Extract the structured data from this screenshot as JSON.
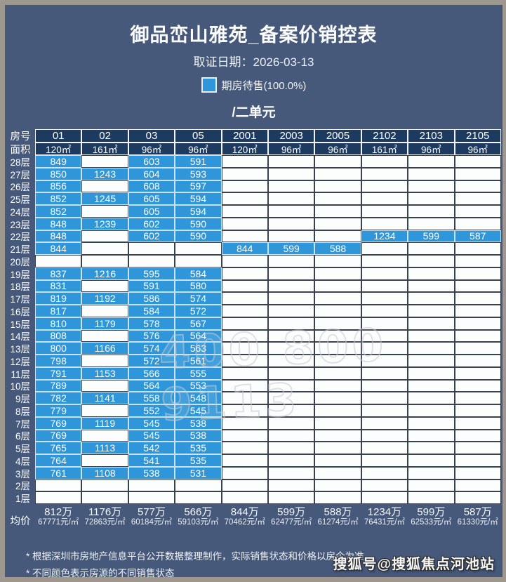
{
  "header": {
    "title": "御品峦山雅苑_备案价销控表",
    "date_line": "取证日期：2026-03-13"
  },
  "legend": {
    "label": "期房待售(100.0%)",
    "color": "#2e96d9"
  },
  "unit_title": "/二单元",
  "table": {
    "corner_labels": [
      "房号",
      "面积"
    ],
    "columns": [
      "01",
      "02",
      "03",
      "05",
      "2001",
      "2003",
      "2005",
      "2102",
      "2103",
      "2105"
    ],
    "areas": [
      "120㎡",
      "161㎡",
      "96㎡",
      "96㎡",
      "120㎡",
      "96㎡",
      "96㎡",
      "161㎡",
      "96㎡",
      "96㎡"
    ],
    "floors": [
      {
        "label": "28层",
        "cells": [
          849,
          null,
          603,
          591,
          null,
          null,
          null,
          null,
          null,
          null
        ]
      },
      {
        "label": "27层",
        "cells": [
          850,
          1243,
          604,
          593,
          null,
          null,
          null,
          null,
          null,
          null
        ]
      },
      {
        "label": "26层",
        "cells": [
          856,
          null,
          608,
          597,
          null,
          null,
          null,
          null,
          null,
          null
        ]
      },
      {
        "label": "25层",
        "cells": [
          852,
          1245,
          605,
          594,
          null,
          null,
          null,
          null,
          null,
          null
        ]
      },
      {
        "label": "24层",
        "cells": [
          852,
          null,
          605,
          594,
          null,
          null,
          null,
          null,
          null,
          null
        ]
      },
      {
        "label": "23层",
        "cells": [
          848,
          1239,
          602,
          590,
          null,
          null,
          null,
          null,
          null,
          null
        ]
      },
      {
        "label": "22层",
        "cells": [
          848,
          null,
          602,
          590,
          null,
          null,
          null,
          1234,
          599,
          587
        ]
      },
      {
        "label": "21层",
        "cells": [
          844,
          null,
          null,
          null,
          844,
          599,
          588,
          null,
          null,
          null
        ]
      },
      {
        "label": "20层",
        "cells": [
          null,
          null,
          null,
          null,
          null,
          null,
          null,
          null,
          null,
          null
        ]
      },
      {
        "label": "19层",
        "cells": [
          837,
          1216,
          595,
          584,
          null,
          null,
          null,
          null,
          null,
          null
        ]
      },
      {
        "label": "18层",
        "cells": [
          831,
          null,
          591,
          580,
          null,
          null,
          null,
          null,
          null,
          null
        ]
      },
      {
        "label": "17层",
        "cells": [
          819,
          1192,
          586,
          574,
          null,
          null,
          null,
          null,
          null,
          null
        ]
      },
      {
        "label": "16层",
        "cells": [
          817,
          null,
          584,
          572,
          null,
          null,
          null,
          null,
          null,
          null
        ]
      },
      {
        "label": "15层",
        "cells": [
          810,
          1179,
          578,
          567,
          null,
          null,
          null,
          null,
          null,
          null
        ]
      },
      {
        "label": "14层",
        "cells": [
          808,
          null,
          576,
          564,
          null,
          null,
          null,
          null,
          null,
          null
        ]
      },
      {
        "label": "13层",
        "cells": [
          800,
          1166,
          574,
          563,
          null,
          null,
          null,
          null,
          null,
          null
        ]
      },
      {
        "label": "12层",
        "cells": [
          798,
          null,
          572,
          561,
          null,
          null,
          null,
          null,
          null,
          null
        ]
      },
      {
        "label": "11层",
        "cells": [
          791,
          1153,
          566,
          555,
          null,
          null,
          null,
          null,
          null,
          null
        ]
      },
      {
        "label": "10层",
        "cells": [
          789,
          null,
          564,
          553,
          null,
          null,
          null,
          null,
          null,
          null
        ]
      },
      {
        "label": "9层",
        "cells": [
          782,
          1141,
          558,
          548,
          null,
          null,
          null,
          null,
          null,
          null
        ]
      },
      {
        "label": "8层",
        "cells": [
          779,
          null,
          552,
          545,
          null,
          null,
          null,
          null,
          null,
          null
        ]
      },
      {
        "label": "7层",
        "cells": [
          769,
          1119,
          545,
          538,
          null,
          null,
          null,
          null,
          null,
          null
        ]
      },
      {
        "label": "6层",
        "cells": [
          769,
          null,
          545,
          538,
          null,
          null,
          null,
          null,
          null,
          null
        ]
      },
      {
        "label": "5层",
        "cells": [
          765,
          1113,
          542,
          535,
          null,
          null,
          null,
          null,
          null,
          null
        ]
      },
      {
        "label": "4层",
        "cells": [
          764,
          null,
          541,
          535,
          null,
          null,
          null,
          null,
          null,
          null
        ]
      },
      {
        "label": "3层",
        "cells": [
          761,
          1108,
          538,
          531,
          null,
          null,
          null,
          null,
          null,
          null
        ]
      },
      {
        "label": "2层",
        "cells": [
          null,
          null,
          null,
          null,
          null,
          null,
          null,
          null,
          null,
          null
        ]
      },
      {
        "label": "1层",
        "cells": [
          null,
          null,
          null,
          null,
          null,
          null,
          null,
          null,
          null,
          null
        ]
      }
    ],
    "avg_label": "均价",
    "averages": [
      {
        "total": "812万",
        "unit": "67771元/㎡"
      },
      {
        "total": "1176万",
        "unit": "72863元/㎡"
      },
      {
        "total": "577万",
        "unit": "60184元/㎡"
      },
      {
        "total": "566万",
        "unit": "59103元/㎡"
      },
      {
        "total": "844万",
        "unit": "70462元/㎡"
      },
      {
        "total": "599万",
        "unit": "62477元/㎡"
      },
      {
        "total": "588万",
        "unit": "61274元/㎡"
      },
      {
        "total": "1234万",
        "unit": "76431元/㎡"
      },
      {
        "total": "599万",
        "unit": "62533元/㎡"
      },
      {
        "total": "587万",
        "unit": "61330元/㎡"
      }
    ]
  },
  "footnotes": [
    "* 根据深圳市房地产信息平台公开数据整理制作，实际销售状态和价格以房企为准",
    "* 不同颜色表示房源的不同销售状态"
  ],
  "watermarks": {
    "center": "400 800 9113",
    "bottom_right": "搜狐号@搜狐焦点河池站"
  },
  "colors": {
    "panel_background": "#46597a",
    "header_cell": "#1d3a60",
    "for_sale_cell": "#2e96d9",
    "empty_cell": "#fcfdfd"
  }
}
